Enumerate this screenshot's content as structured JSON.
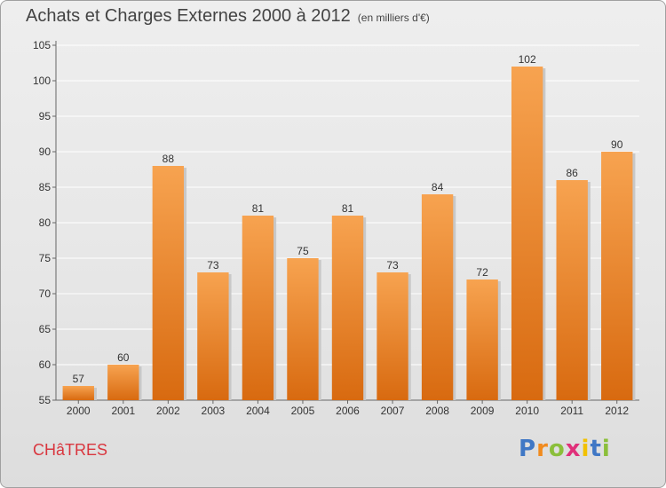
{
  "header": {
    "title": "Achats et Charges Externes 2000 à 2012",
    "subtitle": "(en milliers d'€)"
  },
  "footer": {
    "commune": "CHâTRES",
    "logo": [
      "P",
      "r",
      "o",
      "x",
      "i",
      "t",
      "i"
    ],
    "logo_colors": [
      "#3f77c5",
      "#f18b1e",
      "#8bbf3b",
      "#e0307a",
      "#f2c100",
      "#3f77c5",
      "#8bbf3b"
    ]
  },
  "colors": {
    "bar_top": "#f7a350",
    "bar_bottom": "#d86a10",
    "grid": "#ffffff",
    "commune": "#d9363e"
  },
  "chart_data": {
    "type": "bar",
    "categories": [
      "2000",
      "2001",
      "2002",
      "2003",
      "2004",
      "2005",
      "2006",
      "2007",
      "2008",
      "2009",
      "2010",
      "2011",
      "2012"
    ],
    "values": [
      57,
      60,
      88,
      73,
      81,
      75,
      81,
      73,
      84,
      72,
      102,
      86,
      90
    ],
    "data_labels": [
      "57",
      "60",
      "88",
      "73",
      "81",
      "75",
      "81",
      "73",
      "84",
      "72",
      "102",
      "86",
      "90"
    ],
    "yticks": [
      "55",
      "60",
      "65",
      "70",
      "75",
      "80",
      "85",
      "90",
      "95",
      "100",
      "105"
    ],
    "ylim": [
      55,
      105
    ],
    "grid": true
  }
}
